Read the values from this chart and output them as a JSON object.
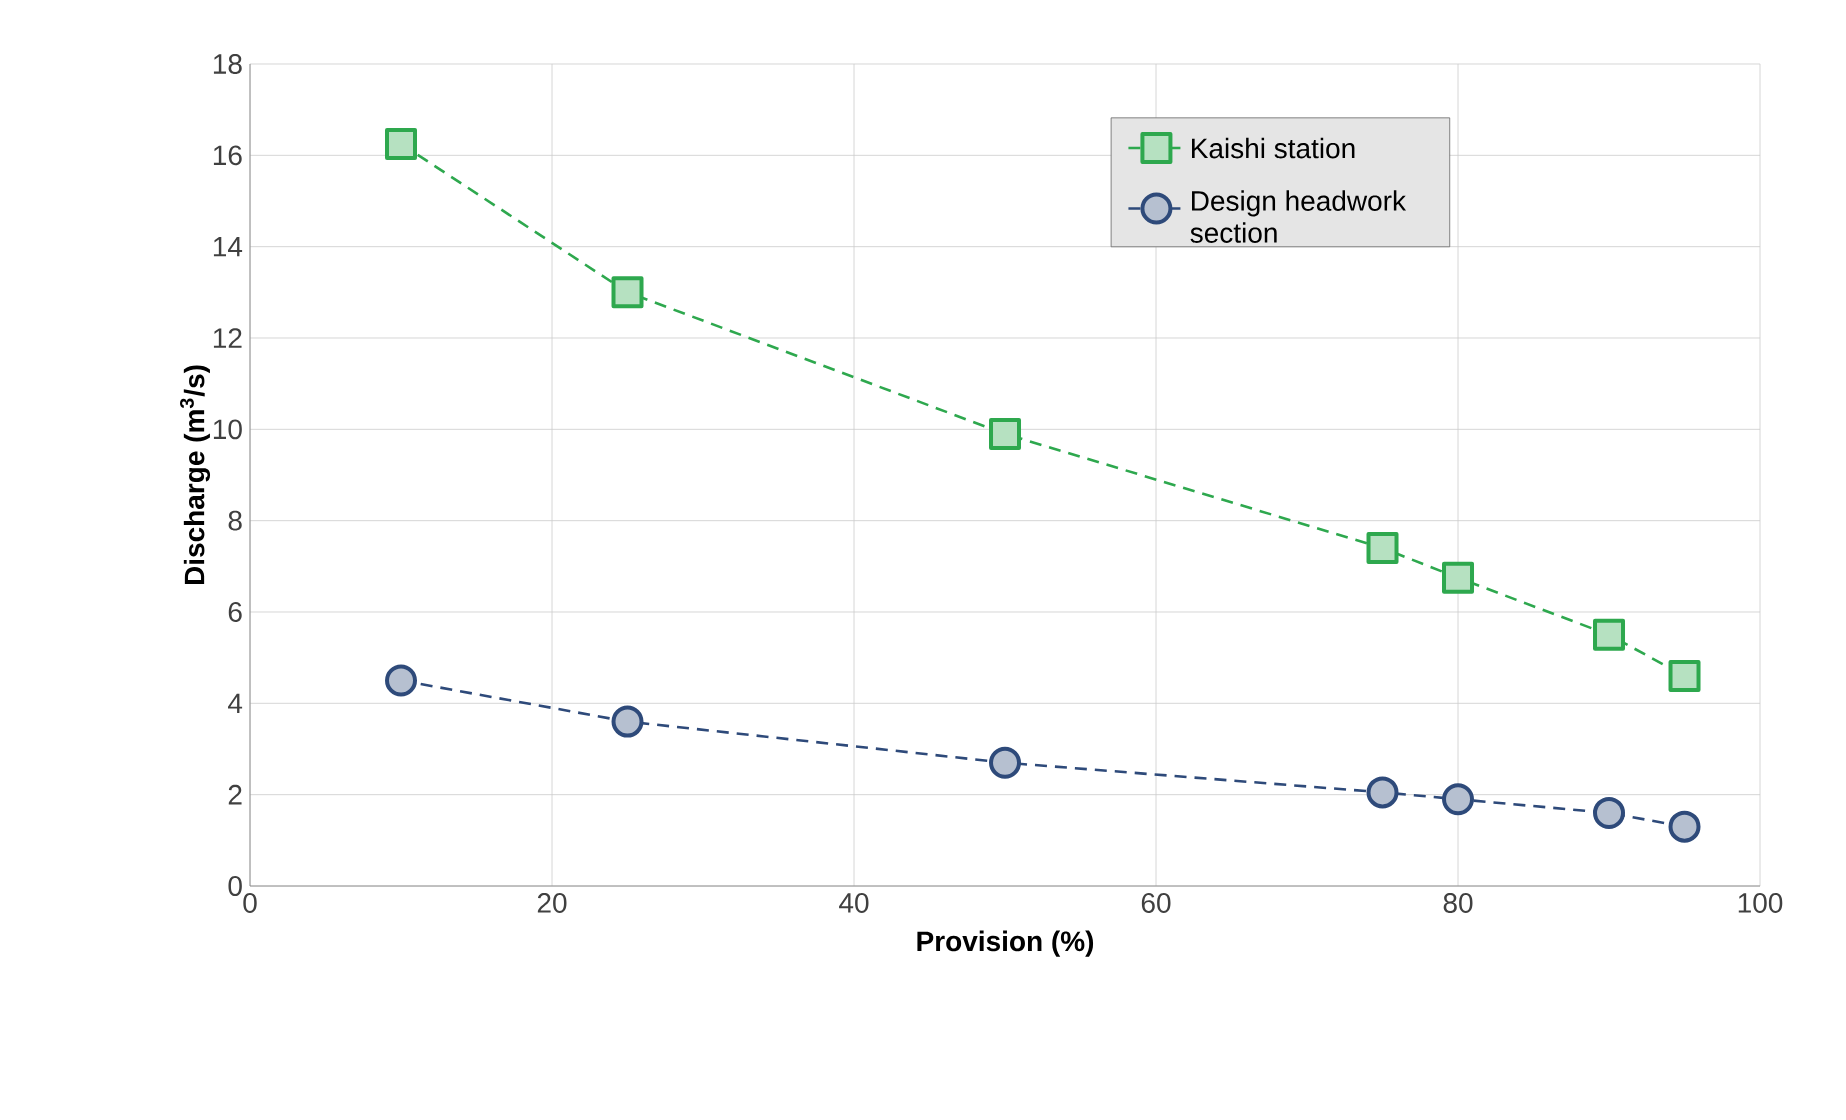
{
  "chart_data": {
    "type": "line",
    "xlabel": "Provision (%)",
    "ylabel": "Discharge (m$^{3}$/s)",
    "xlim": [
      0,
      100
    ],
    "xticks": [
      0,
      20,
      40,
      60,
      80,
      100
    ],
    "ylim": [
      0,
      18
    ],
    "yticks": [
      0,
      2,
      4,
      6,
      8,
      10,
      12,
      14,
      16,
      18
    ],
    "x": [
      10,
      25,
      50,
      75,
      80,
      90,
      95
    ],
    "series": [
      {
        "name": "Kaishi station",
        "color": "#2ea84e",
        "marker": "square",
        "values": [
          16.25,
          13.0,
          9.9,
          7.4,
          6.75,
          5.5,
          4.6
        ]
      },
      {
        "name": "Design headwork section",
        "color": "#2e4a7a",
        "marker": "circle",
        "values": [
          4.5,
          3.6,
          2.7,
          2.05,
          1.9,
          1.6,
          1.3
        ]
      }
    ],
    "line_style": "dashed",
    "grid": true,
    "legend": "top right"
  }
}
